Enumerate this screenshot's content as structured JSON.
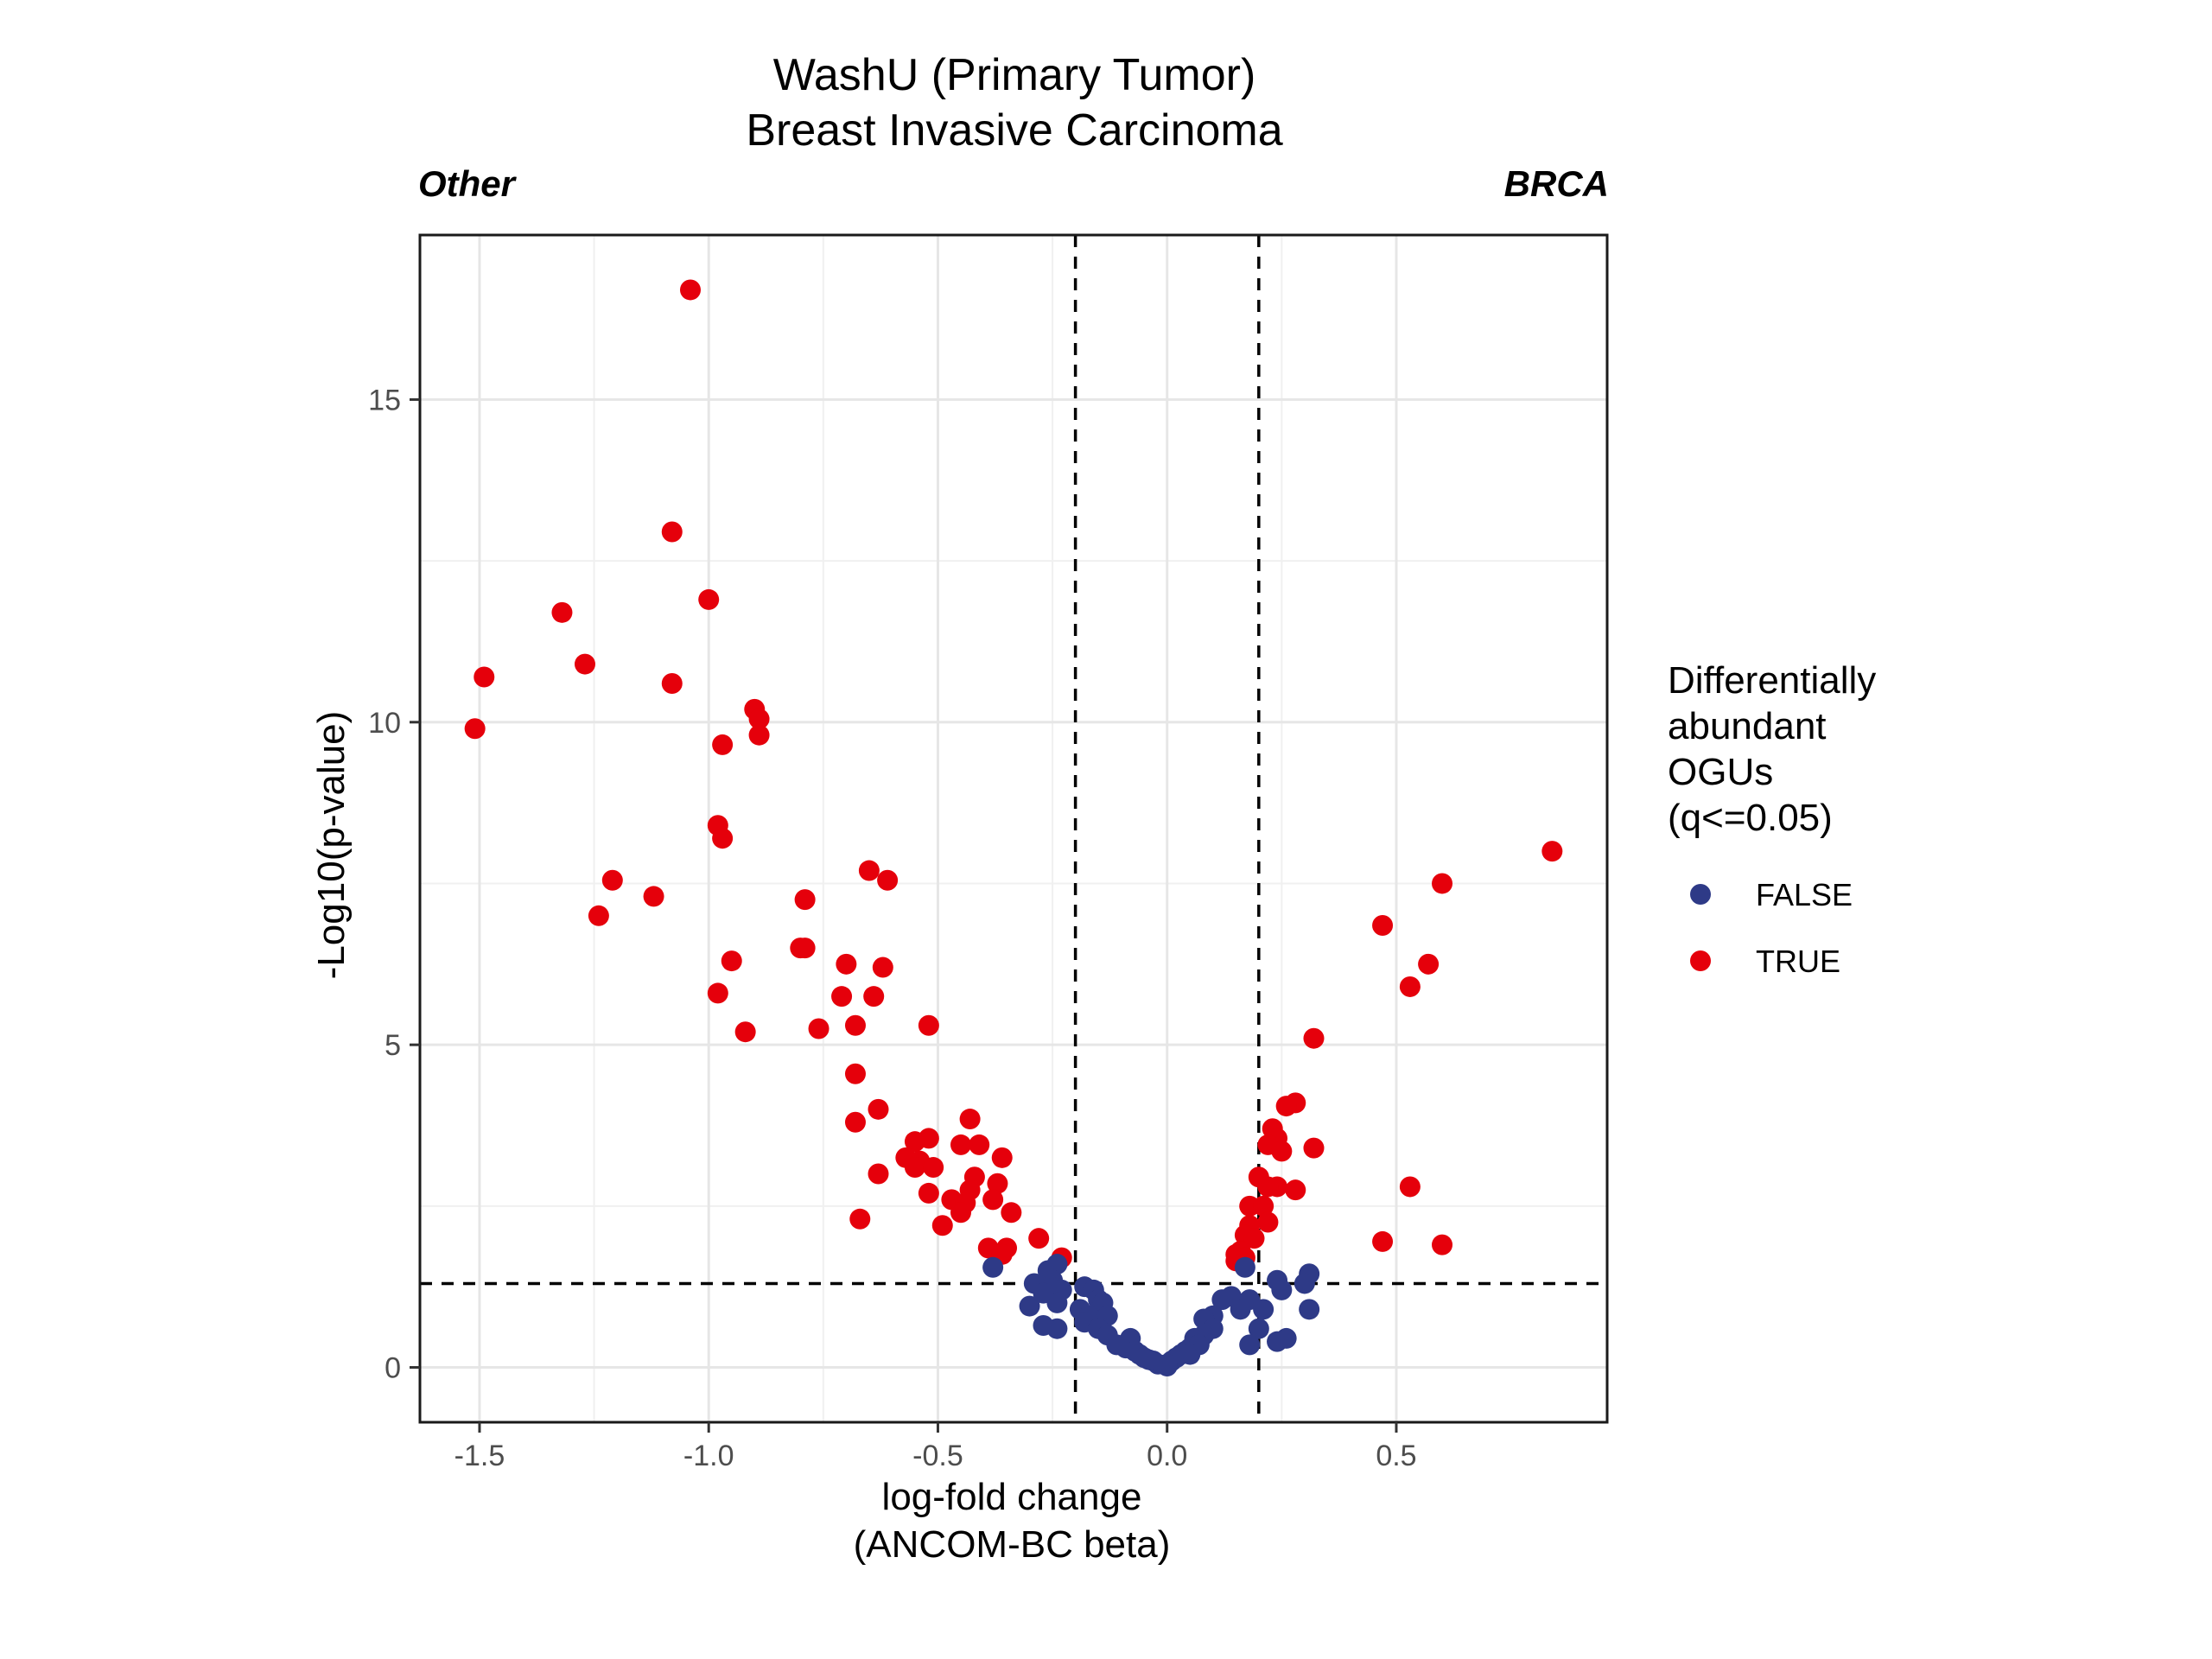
{
  "chart_data": {
    "type": "scatter",
    "title": [
      "WashU (Primary Tumor)",
      "Breast Invasive Carcinoma"
    ],
    "left_label": "Other",
    "right_label": "BRCA",
    "xlabel": [
      "log-fold change",
      "(ANCOM-BC beta)"
    ],
    "ylabel": "-Log10(p-value)",
    "xlim": [
      -1.63,
      0.96
    ],
    "ylim": [
      -0.85,
      17.55
    ],
    "x_ticks": [
      -1.5,
      -1.0,
      -0.5,
      0.0,
      0.5
    ],
    "x_tick_labels": [
      "-1.5",
      "-1.0",
      "-0.5",
      "0.0",
      "0.5"
    ],
    "y_ticks": [
      0,
      5,
      10,
      15
    ],
    "y_tick_labels": [
      "0",
      "5",
      "10",
      "15"
    ],
    "grid": true,
    "vlines": [
      -0.2,
      0.2
    ],
    "hline": 1.3,
    "legend": {
      "title": [
        "Differentially",
        "abundant",
        "OGUs",
        "(q<=0.05)"
      ],
      "position": "right",
      "entries": [
        {
          "label": "FALSE",
          "color": "#2e3a87"
        },
        {
          "label": "TRUE",
          "color": "#e5000b"
        }
      ]
    },
    "series": [
      {
        "name": "TRUE",
        "color": "#e5000b",
        "points": [
          [
            -1.04,
            16.7
          ],
          [
            -1.08,
            12.95
          ],
          [
            -1.0,
            11.9
          ],
          [
            -1.32,
            11.7
          ],
          [
            -1.27,
            10.9
          ],
          [
            -1.49,
            10.7
          ],
          [
            -1.08,
            10.6
          ],
          [
            -0.9,
            10.2
          ],
          [
            -0.89,
            10.05
          ],
          [
            -1.51,
            9.9
          ],
          [
            -0.89,
            9.8
          ],
          [
            -0.97,
            9.65
          ],
          [
            -0.98,
            8.4
          ],
          [
            -0.97,
            8.2
          ],
          [
            0.84,
            8.0
          ],
          [
            -0.65,
            7.7
          ],
          [
            -0.61,
            7.55
          ],
          [
            -1.21,
            7.55
          ],
          [
            0.6,
            7.5
          ],
          [
            -1.12,
            7.3
          ],
          [
            -0.79,
            7.25
          ],
          [
            -1.24,
            7.0
          ],
          [
            0.47,
            6.85
          ],
          [
            -0.79,
            6.5
          ],
          [
            -0.8,
            6.5
          ],
          [
            -0.95,
            6.3
          ],
          [
            -0.7,
            6.25
          ],
          [
            0.57,
            6.25
          ],
          [
            -0.62,
            6.2
          ],
          [
            0.53,
            5.9
          ],
          [
            -0.98,
            5.8
          ],
          [
            -0.71,
            5.75
          ],
          [
            -0.64,
            5.75
          ],
          [
            -0.68,
            5.3
          ],
          [
            -0.52,
            5.3
          ],
          [
            -0.76,
            5.25
          ],
          [
            -0.92,
            5.2
          ],
          [
            0.32,
            5.1
          ],
          [
            -0.68,
            4.55
          ],
          [
            0.28,
            4.1
          ],
          [
            0.26,
            4.05
          ],
          [
            -0.63,
            4.0
          ],
          [
            -0.43,
            3.85
          ],
          [
            -0.68,
            3.8
          ],
          [
            0.23,
            3.7
          ],
          [
            0.24,
            3.55
          ],
          [
            -0.52,
            3.55
          ],
          [
            -0.55,
            3.5
          ],
          [
            -0.45,
            3.45
          ],
          [
            -0.41,
            3.45
          ],
          [
            0.22,
            3.45
          ],
          [
            0.32,
            3.4
          ],
          [
            0.25,
            3.35
          ],
          [
            -0.57,
            3.25
          ],
          [
            -0.54,
            3.2
          ],
          [
            -0.36,
            3.25
          ],
          [
            -0.55,
            3.1
          ],
          [
            -0.51,
            3.1
          ],
          [
            -0.42,
            2.95
          ],
          [
            0.2,
            2.95
          ],
          [
            -0.63,
            3.0
          ],
          [
            -0.37,
            2.85
          ],
          [
            0.24,
            2.8
          ],
          [
            0.22,
            2.8
          ],
          [
            0.28,
            2.75
          ],
          [
            0.53,
            2.8
          ],
          [
            -0.43,
            2.75
          ],
          [
            -0.52,
            2.7
          ],
          [
            -0.47,
            2.6
          ],
          [
            -0.38,
            2.6
          ],
          [
            -0.44,
            2.55
          ],
          [
            0.18,
            2.5
          ],
          [
            0.21,
            2.5
          ],
          [
            -0.45,
            2.4
          ],
          [
            -0.34,
            2.4
          ],
          [
            -0.67,
            2.3
          ],
          [
            -0.49,
            2.2
          ],
          [
            0.22,
            2.25
          ],
          [
            0.18,
            2.2
          ],
          [
            0.17,
            2.05
          ],
          [
            -0.28,
            2.0
          ],
          [
            0.19,
            2.0
          ],
          [
            0.47,
            1.95
          ],
          [
            0.6,
            1.9
          ],
          [
            -0.39,
            1.85
          ],
          [
            -0.35,
            1.85
          ],
          [
            -0.36,
            1.75
          ],
          [
            0.15,
            1.75
          ],
          [
            0.16,
            1.8
          ],
          [
            0.17,
            1.7
          ],
          [
            0.15,
            1.65
          ],
          [
            -0.23,
            1.7
          ]
        ]
      },
      {
        "name": "FALSE",
        "color": "#2e3a87",
        "points": [
          [
            -0.38,
            1.55
          ],
          [
            0.17,
            1.55
          ],
          [
            -0.26,
            1.5
          ],
          [
            -0.24,
            1.6
          ],
          [
            0.31,
            1.45
          ],
          [
            0.3,
            1.3
          ],
          [
            0.24,
            1.35
          ],
          [
            -0.25,
            1.35
          ],
          [
            -0.29,
            1.3
          ],
          [
            0.25,
            1.2
          ],
          [
            -0.18,
            1.25
          ],
          [
            -0.16,
            1.2
          ],
          [
            -0.23,
            1.2
          ],
          [
            -0.27,
            1.15
          ],
          [
            0.14,
            1.1
          ],
          [
            0.12,
            1.05
          ],
          [
            0.18,
            1.05
          ],
          [
            -0.15,
            1.05
          ],
          [
            -0.24,
            1.0
          ],
          [
            -0.14,
            1.0
          ],
          [
            -0.3,
            0.95
          ],
          [
            0.31,
            0.9
          ],
          [
            -0.19,
            0.9
          ],
          [
            0.16,
            0.9
          ],
          [
            0.21,
            0.9
          ],
          [
            -0.17,
            0.8
          ],
          [
            -0.13,
            0.8
          ],
          [
            0.1,
            0.8
          ],
          [
            0.08,
            0.75
          ],
          [
            -0.18,
            0.7
          ],
          [
            -0.27,
            0.65
          ],
          [
            -0.24,
            0.6
          ],
          [
            -0.15,
            0.6
          ],
          [
            0.1,
            0.6
          ],
          [
            0.2,
            0.6
          ],
          [
            -0.13,
            0.5
          ],
          [
            0.26,
            0.45
          ],
          [
            0.24,
            0.4
          ],
          [
            0.08,
            0.5
          ],
          [
            -0.08,
            0.45
          ],
          [
            0.06,
            0.45
          ],
          [
            0.18,
            0.35
          ],
          [
            -0.11,
            0.35
          ],
          [
            -0.09,
            0.3
          ],
          [
            0.05,
            0.3
          ],
          [
            -0.07,
            0.25
          ],
          [
            0.04,
            0.25
          ],
          [
            0.07,
            0.35
          ],
          [
            -0.06,
            0.2
          ],
          [
            0.03,
            0.2
          ],
          [
            -0.05,
            0.15
          ],
          [
            0.02,
            0.15
          ],
          [
            -0.03,
            0.1
          ],
          [
            0.01,
            0.1
          ],
          [
            -0.02,
            0.05
          ],
          [
            0.0,
            0.05
          ],
          [
            0.0,
            0.02
          ],
          [
            0.05,
            0.2
          ],
          [
            -0.04,
            0.12
          ]
        ]
      }
    ]
  }
}
